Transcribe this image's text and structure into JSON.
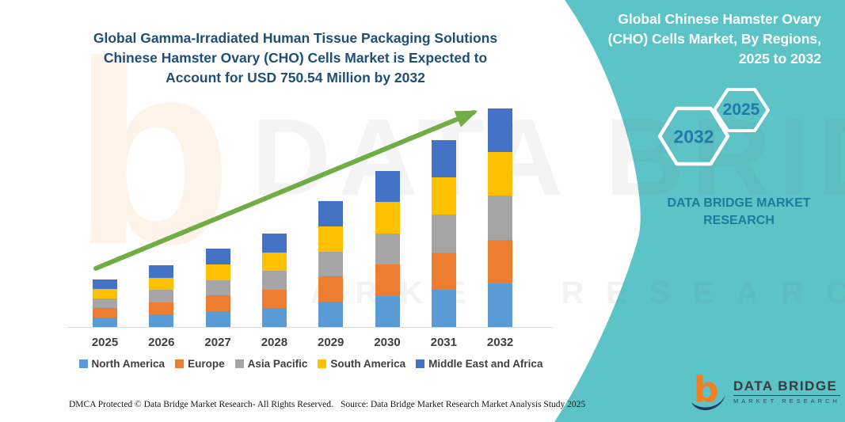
{
  "header": {
    "left_title_lines": [
      "Global Gamma-Irradiated Human Tissue Packaging Solutions",
      "Chinese Hamster Ovary (CHO) Cells Market is Expected to",
      "Account for USD 750.54 Million by 2032"
    ]
  },
  "right_panel": {
    "title_lines": [
      "Global Chinese Hamster Ovary",
      "(CHO) Cells Market, By Regions,",
      "2025 to 2032"
    ],
    "badge_start_year": "2032",
    "badge_end_year": "2025",
    "brand_lines": [
      "DATA BRIDGE MARKET",
      "RESEARCH"
    ]
  },
  "watermark": {
    "big_letter": "b",
    "line1": "DATA BRIDGE",
    "line2": "MARKET RESEARCH"
  },
  "chart_data": {
    "type": "bar",
    "stacked": true,
    "title": "Global Gamma-Irradiated Human Tissue Packaging Solutions Chinese Hamster Ovary (CHO) Cells Market is Expected to Account for USD 750.54 Million by 2032",
    "unit": "USD Million",
    "categories": [
      "2025",
      "2026",
      "2027",
      "2028",
      "2029",
      "2030",
      "2031",
      "2032"
    ],
    "series": [
      {
        "name": "North America",
        "color": "#5B9BD5",
        "values": [
          32.6,
          42.4,
          53.9,
          64.2,
          86.5,
          107.2,
          128.4,
          150.1
        ]
      },
      {
        "name": "Europe",
        "color": "#ED7D31",
        "values": [
          32.6,
          42.4,
          53.9,
          64.2,
          86.5,
          107.2,
          128.4,
          150.1
        ]
      },
      {
        "name": "Asia Pacific",
        "color": "#A5A5A5",
        "values": [
          32.6,
          42.4,
          53.9,
          64.2,
          86.5,
          107.2,
          128.4,
          150.1
        ]
      },
      {
        "name": "South America",
        "color": "#FFC000",
        "values": [
          32.6,
          42.4,
          53.9,
          64.2,
          86.5,
          107.2,
          128.4,
          150.1
        ]
      },
      {
        "name": "Middle East and Africa",
        "color": "#4472C4",
        "values": [
          32.6,
          42.4,
          53.9,
          64.2,
          86.5,
          107.2,
          128.4,
          150.1
        ]
      }
    ],
    "totals": [
      163.2,
      212.2,
      269.3,
      321.0,
      432.5,
      535.9,
      642.0,
      750.54
    ],
    "highlight_value": "USD 750.54 Million by 2032",
    "ylim": [
      0,
      800
    ],
    "grid": false,
    "legend_position": "bottom",
    "trend_arrow": true,
    "trend_arrow_color": "#70AD47"
  },
  "logo": {
    "name": "DATA BRIDGE",
    "sub": "MARKET RESEARCH"
  },
  "footer": {
    "left": "DMCA Protected © Data Bridge Market Research-  All Rights Reserved.",
    "source": "Source: Data Bridge Market Research  Market Analysis Study 2025"
  },
  "colors": {
    "teal_panel": "#5CC4C7",
    "title_blue": "#1F4E79",
    "badge_text": "#2579A8",
    "brand_teal_text": "#1B7C9F",
    "axis_label": "#3F3F3F",
    "axis_line": "#D9D9D9",
    "arrow_green": "#70AD47",
    "logo_orange": "#F07F23",
    "logo_navy": "#1F3864"
  }
}
